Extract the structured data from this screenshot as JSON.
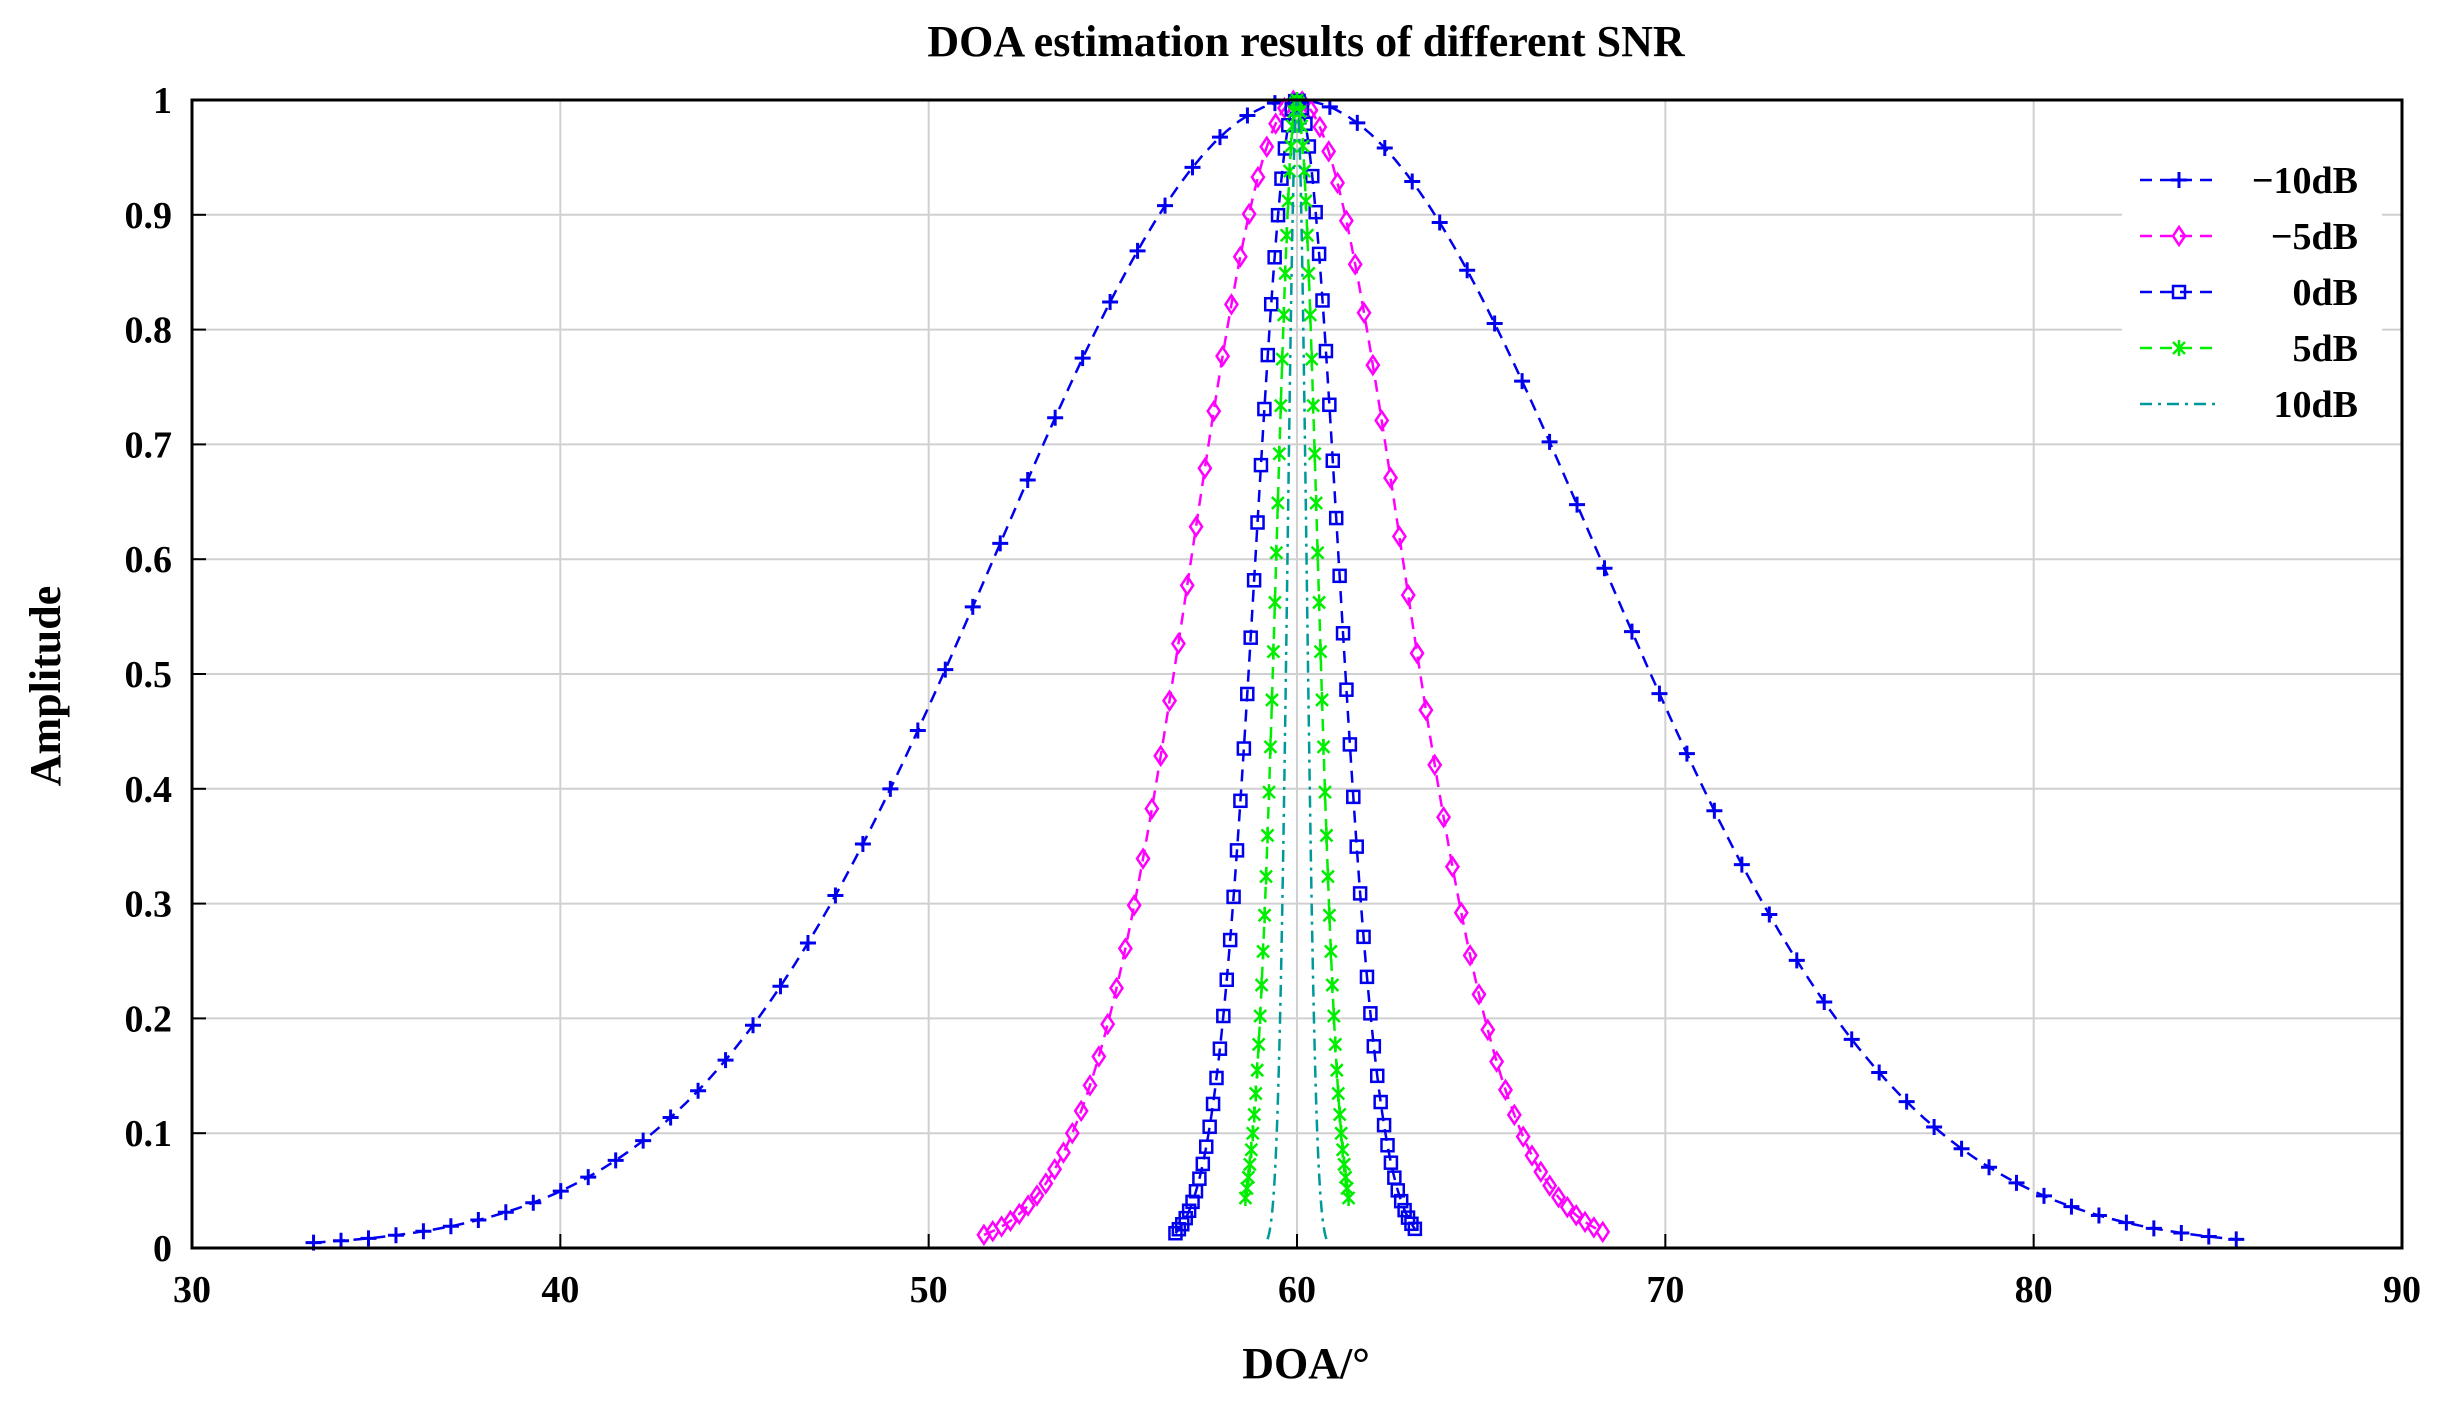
{
  "chart_data": {
    "type": "line",
    "title": "DOA estimation results of different SNR",
    "xlabel": "DOA/°",
    "ylabel": "Amplitude",
    "xlim": [
      30,
      90
    ],
    "ylim": [
      0,
      1
    ],
    "xticks": [
      "30",
      "40",
      "50",
      "60",
      "70",
      "80",
      "90"
    ],
    "yticks": [
      "0",
      "0.1",
      "0.2",
      "0.3",
      "0.4",
      "0.5",
      "0.6",
      "0.7",
      "0.8",
      "0.9",
      "1"
    ],
    "grid": true,
    "legend_position": "top-right",
    "peak_doa": 60,
    "series": [
      {
        "name": "−10dB",
        "color": "#0000ee",
        "marker": "plus",
        "x_range": [
          33.3,
          85.5
        ],
        "halfwidth_at_01": 17.5
      },
      {
        "name": "−5dB",
        "color": "#ff00ff",
        "marker": "diamond",
        "x_range": [
          51.5,
          68.3
        ],
        "halfwidth_at_01": 6.1
      },
      {
        "name": "0dB",
        "color": "#0000ee",
        "marker": "square",
        "x_range": [
          56.7,
          63.2
        ],
        "halfwidth_at_01": 2.4
      },
      {
        "name": "5dB",
        "color": "#00ee00",
        "marker": "asterisk",
        "x_range": [
          58.6,
          61.4
        ],
        "halfwidth_at_01": 1.2
      },
      {
        "name": "10dB",
        "color": "#009999",
        "marker": "none",
        "x_range": [
          59.2,
          60.8
        ],
        "halfwidth_at_01": 0.55
      }
    ]
  }
}
